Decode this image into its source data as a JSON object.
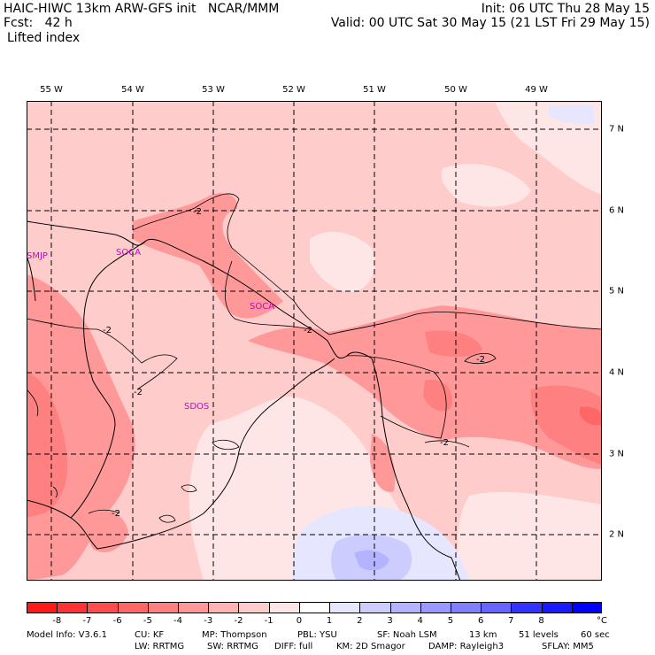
{
  "header": {
    "left_line1": "HAIC-HIWC 13km ARW-GFS init   NCAR/MMM",
    "left_line2": "Fcst:   42 h",
    "field": "Lifted index",
    "right_line1": "Init: 06 UTC Thu 28 May 15",
    "right_line2": "Valid: 00 UTC Sat 30 May 15 (21 LST Fri 29 May 15)"
  },
  "map": {
    "lon_labels": [
      "55 W",
      "54 W",
      "53 W",
      "52 W",
      "51 W",
      "50 W",
      "49 W"
    ],
    "lat_labels": [
      "7 N",
      "6 N",
      "5 N",
      "4 N",
      "3 N",
      "2 N"
    ],
    "stations": [
      "SMJP",
      "SOCA",
      "SOCA",
      "SDOS"
    ],
    "contour_labels": [
      "-2",
      "-2",
      "-2",
      "-2",
      "-2",
      "-2",
      "-2"
    ]
  },
  "colorbar": {
    "colors": [
      "#ff1a1a",
      "#ff3333",
      "#ff4d4d",
      "#ff6666",
      "#ff8080",
      "#ff9999",
      "#ffb3b3",
      "#ffcccc",
      "#ffe6e6",
      "#ffffff",
      "#e6e6ff",
      "#ccccff",
      "#b3b3ff",
      "#9999ff",
      "#8080ff",
      "#6666ff",
      "#3333ff",
      "#1a1aff",
      "#0000ff"
    ],
    "labels": [
      "-8",
      "-7",
      "-6",
      "-5",
      "-4",
      "-3",
      "-2",
      "-1",
      "0",
      "1",
      "2",
      "3",
      "4",
      "5",
      "6",
      "7",
      "8"
    ],
    "unit": "°C"
  },
  "footer": {
    "line1": [
      "Model Info: V3.6.1",
      "CU: KF",
      "MP: Thompson",
      "PBL: YSU",
      "SF: Noah LSM",
      "13 km",
      "51 levels",
      "60 sec"
    ],
    "line2": [
      "LW: RRTMG",
      "SW: RRTMG",
      "DIFF: full",
      "KM: 2D Smagor",
      "DAMP: Rayleigh3",
      "SFLAY: MM5"
    ]
  }
}
